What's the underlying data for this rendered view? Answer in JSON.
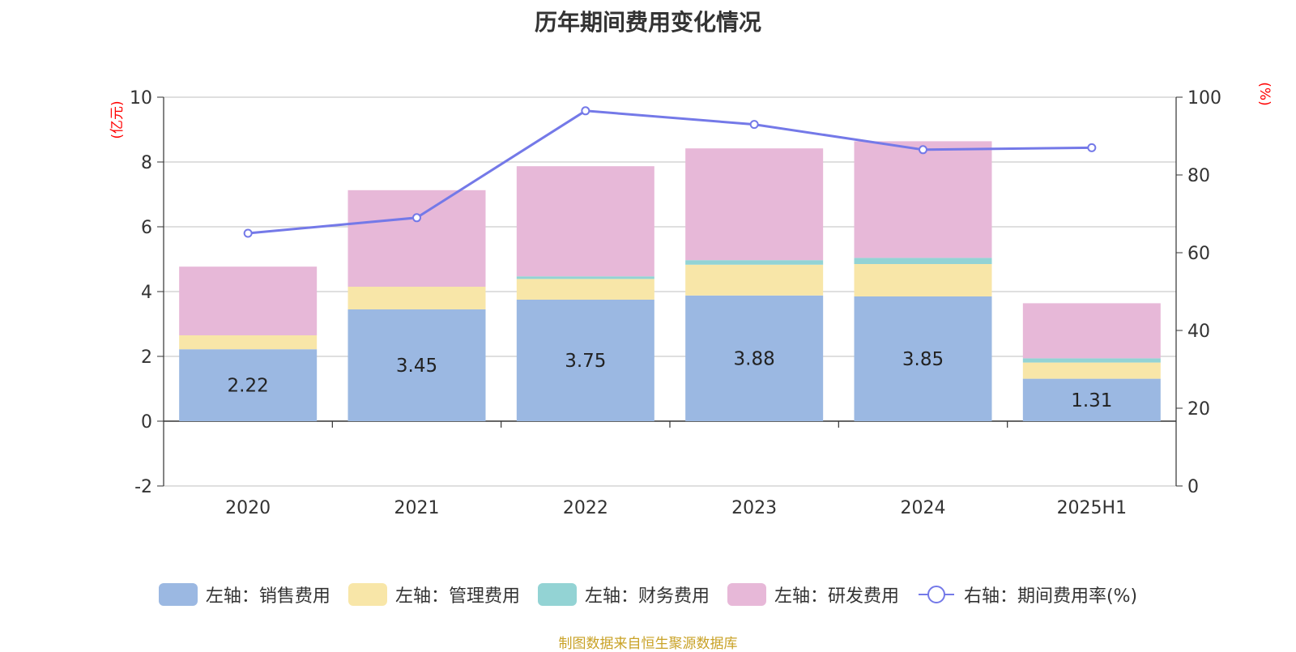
{
  "title": "历年期间费用变化情况",
  "source": "制图数据来自恒生聚源数据库",
  "source_color": "#c9a227",
  "chart_data": {
    "type": "bar",
    "stacked": true,
    "categories": [
      "2020",
      "2021",
      "2022",
      "2023",
      "2024",
      "2025H1"
    ],
    "left_axis": {
      "unit": "(亿元)",
      "ylim": [
        -2,
        10
      ],
      "ticks": [
        -2,
        0,
        2,
        4,
        6,
        8,
        10
      ],
      "color": "#ff0000"
    },
    "right_axis": {
      "unit": "(%)",
      "ylim": [
        0,
        100
      ],
      "ticks": [
        0,
        20,
        40,
        60,
        80,
        100
      ],
      "color": "#ff0000"
    },
    "grid": true,
    "legend_position": "bottom",
    "series": [
      {
        "name": "左轴：销售费用",
        "axis": "left",
        "type": "bar",
        "color": "#9bb8e2",
        "values": [
          2.22,
          3.45,
          3.75,
          3.88,
          3.85,
          1.31
        ],
        "show_labels": true
      },
      {
        "name": "左轴：管理费用",
        "axis": "left",
        "type": "bar",
        "color": "#f8e6a8",
        "values": [
          0.43,
          0.7,
          0.64,
          0.95,
          1.0,
          0.5
        ]
      },
      {
        "name": "左轴：财务费用",
        "axis": "left",
        "type": "bar",
        "color": "#93d3d4",
        "values": [
          0.0,
          0.0,
          0.08,
          0.14,
          0.19,
          0.13
        ]
      },
      {
        "name": "左轴：研发费用",
        "axis": "left",
        "type": "bar",
        "color": "#e7b8d8",
        "values": [
          2.12,
          2.98,
          3.4,
          3.45,
          3.6,
          1.7
        ]
      },
      {
        "name": "右轴：期间费用率(%)",
        "axis": "right",
        "type": "line",
        "color": "#7479e8",
        "values": [
          65.0,
          69.0,
          96.5,
          93.0,
          86.5,
          87.0
        ]
      }
    ]
  }
}
